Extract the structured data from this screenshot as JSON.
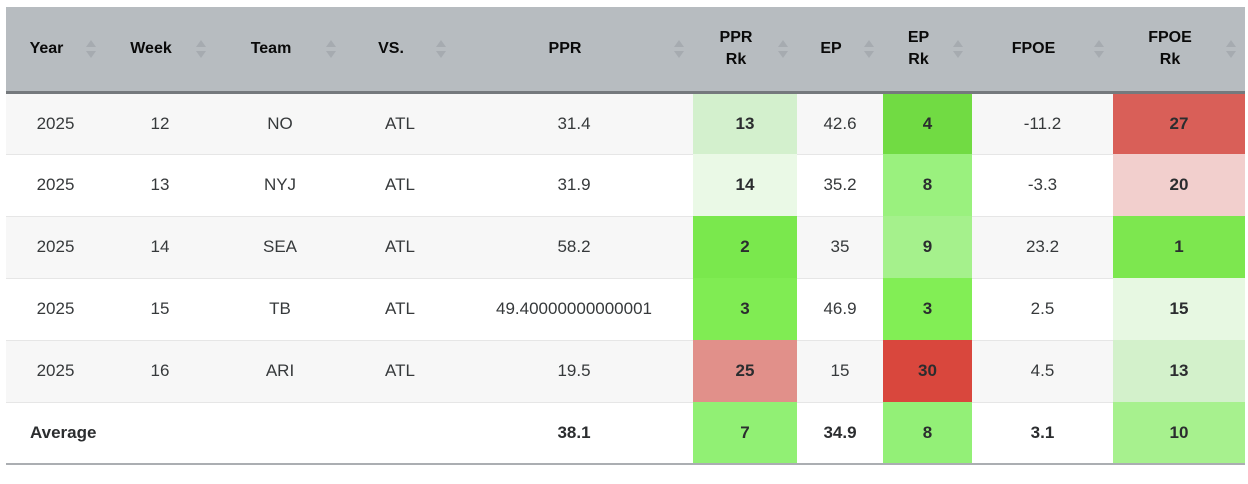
{
  "table": {
    "columns": [
      {
        "id": "year",
        "label_lines": [
          "Year"
        ]
      },
      {
        "id": "week",
        "label_lines": [
          "Week"
        ]
      },
      {
        "id": "team",
        "label_lines": [
          "Team"
        ]
      },
      {
        "id": "vs",
        "label_lines": [
          "VS."
        ]
      },
      {
        "id": "ppr",
        "label_lines": [
          "PPR"
        ]
      },
      {
        "id": "ppr_rk",
        "label_lines": [
          "PPR",
          "Rk"
        ]
      },
      {
        "id": "ep",
        "label_lines": [
          "EP"
        ]
      },
      {
        "id": "ep_rk",
        "label_lines": [
          "EP",
          "Rk"
        ]
      },
      {
        "id": "fpoe",
        "label_lines": [
          "FPOE"
        ]
      },
      {
        "id": "fpoe_rk",
        "label_lines": [
          "FPOE",
          "Rk"
        ]
      }
    ],
    "rows": [
      {
        "year": "2025",
        "week": "12",
        "team": "NO",
        "vs": "ATL",
        "ppr": "31.4",
        "ppr_rk": {
          "text": "13",
          "bg": "#d3f0cd"
        },
        "ep": "42.6",
        "ep_rk": {
          "text": "4",
          "bg": "#71db43"
        },
        "fpoe": "-11.2",
        "fpoe_rk": {
          "text": "27",
          "bg": "#d95f58"
        }
      },
      {
        "year": "2025",
        "week": "13",
        "team": "NYJ",
        "vs": "ATL",
        "ppr": "31.9",
        "ppr_rk": {
          "text": "14",
          "bg": "#eaf9e6"
        },
        "ep": "35.2",
        "ep_rk": {
          "text": "8",
          "bg": "#9af17e"
        },
        "fpoe": "-3.3",
        "fpoe_rk": {
          "text": "20",
          "bg": "#f2cfcd"
        }
      },
      {
        "year": "2025",
        "week": "14",
        "team": "SEA",
        "vs": "ATL",
        "ppr": "58.2",
        "ppr_rk": {
          "text": "2",
          "bg": "#7ae84d"
        },
        "ep": "35",
        "ep_rk": {
          "text": "9",
          "bg": "#a5f18c"
        },
        "fpoe": "23.2",
        "fpoe_rk": {
          "text": "1",
          "bg": "#7de74f"
        }
      },
      {
        "year": "2025",
        "week": "15",
        "team": "TB",
        "vs": "ATL",
        "ppr": "49.40000000000001",
        "ppr_rk": {
          "text": "3",
          "bg": "#80ec53"
        },
        "ep": "46.9",
        "ep_rk": {
          "text": "3",
          "bg": "#82ee55"
        },
        "fpoe": "2.5",
        "fpoe_rk": {
          "text": "15",
          "bg": "#e7f8e2"
        }
      },
      {
        "year": "2025",
        "week": "16",
        "team": "ARI",
        "vs": "ATL",
        "ppr": "19.5",
        "ppr_rk": {
          "text": "25",
          "bg": "#e1908a"
        },
        "ep": "15",
        "ep_rk": {
          "text": "30",
          "bg": "#d9473d"
        },
        "fpoe": "4.5",
        "fpoe_rk": {
          "text": "13",
          "bg": "#d3f1cb"
        }
      }
    ],
    "average_row": {
      "year": "Average",
      "week": "",
      "team": "",
      "vs": "",
      "ppr": "38.1",
      "ppr_rk": {
        "text": "7",
        "bg": "#91f074"
      },
      "ep": "34.9",
      "ep_rk": {
        "text": "8",
        "bg": "#93f077"
      },
      "fpoe": "3.1",
      "fpoe_rk": {
        "text": "10",
        "bg": "#a7f18e"
      }
    }
  },
  "colors": {
    "header_bg": "#b7bcc0",
    "header_border": "#75797d",
    "row_odd_bg": "#f7f7f7",
    "row_even_bg": "#ffffff",
    "row_border": "#e6e6e6",
    "bottom_border": "#abaeb2",
    "sort_arrow": "#a6abb0",
    "rank_red_strong": "#d9473d",
    "rank_green_strong": "#71db43"
  },
  "icons": {
    "sort_ascending": "triangle-up",
    "sort_descending": "triangle-down"
  }
}
